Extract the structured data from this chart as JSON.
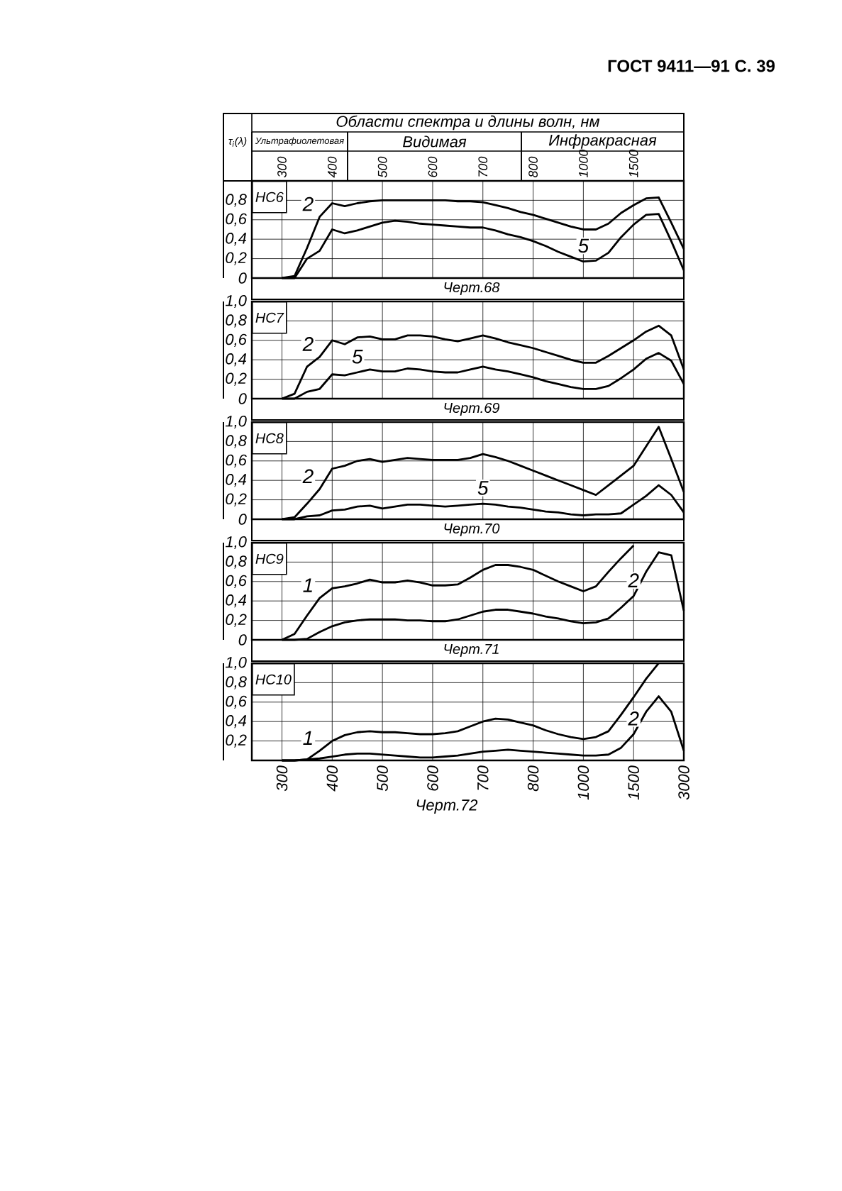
{
  "chart_data": [
    {
      "type": "other",
      "title": "Области спектра и длины волн, нм",
      "annotations": [
        "ГОСТ 9411—91 С. 39",
        "τ$_{i}$(λ)",
        "Ультрафиолетовая",
        "Видимая",
        "Инфракрасная"
      ]
    },
    {
      "type": "line",
      "title": "НС6",
      "categories": [
        "300",
        null,
        null,
        null,
        "400",
        null,
        null,
        null,
        "500",
        null,
        null,
        null,
        "600",
        null,
        null,
        null,
        "700",
        null,
        null,
        null,
        "800",
        null,
        null,
        null,
        "1000",
        null,
        null,
        null,
        "1500",
        null,
        null,
        null,
        null
      ],
      "ylim": [
        0,
        1
      ],
      "yticks": [
        0,
        {
          "value": 0.2,
          "label": "0,2"
        },
        {
          "value": 0.4,
          "label": "0,4"
        },
        {
          "value": 0.6,
          "label": "0,6"
        },
        {
          "value": 0.8,
          "label": "0,8"
        }
      ],
      "grid": true,
      "annotations": [
        "Черт.68"
      ],
      "series": [
        {
          "name": "2",
          "color": "#000000",
          "values": [
            0,
            0.02,
            0.31,
            0.63,
            0.77,
            0.74,
            0.77,
            0.79,
            0.8,
            0.8,
            0.8,
            0.8,
            0.8,
            0.8,
            0.79,
            0.79,
            0.78,
            0.75,
            0.72,
            0.68,
            0.65,
            0.61,
            0.57,
            0.53,
            0.5,
            0.5,
            0.56,
            0.67,
            0.75,
            0.82,
            0.83,
            0.57,
            0.3
          ]
        },
        {
          "name": "5",
          "color": "#000000",
          "values": [
            0,
            0,
            0.2,
            0.28,
            0.5,
            0.46,
            0.49,
            0.53,
            0.57,
            0.59,
            0.58,
            0.56,
            0.55,
            0.54,
            0.53,
            0.52,
            0.52,
            0.49,
            0.45,
            0.42,
            0.38,
            0.33,
            0.27,
            0.22,
            0.17,
            0.18,
            0.26,
            0.42,
            0.55,
            0.65,
            0.66,
            0.38,
            0.08
          ]
        }
      ]
    },
    {
      "type": "line",
      "title": "НС7",
      "categories": [
        "300",
        null,
        null,
        null,
        "400",
        null,
        null,
        null,
        "500",
        null,
        null,
        null,
        "600",
        null,
        null,
        null,
        "700",
        null,
        null,
        null,
        "800",
        null,
        null,
        null,
        "1000",
        null,
        null,
        null,
        "1500",
        null,
        null,
        null,
        "3000"
      ],
      "ylim": [
        0,
        1
      ],
      "yticks": [
        0,
        {
          "value": 0.2,
          "label": "0,2"
        },
        {
          "value": 0.4,
          "label": "0,4"
        },
        {
          "value": 0.6,
          "label": "0,6"
        },
        {
          "value": 0.8,
          "label": "0,8"
        },
        {
          "value": 1.0,
          "label": "1,0"
        }
      ],
      "grid": true,
      "tick_labels": "y",
      "annotations": [
        "Черт.69"
      ],
      "series": [
        {
          "name": "2",
          "color": "#000000",
          "values": [
            0,
            0.05,
            0.33,
            0.43,
            0.6,
            0.56,
            0.63,
            0.64,
            0.61,
            0.61,
            0.65,
            0.65,
            0.64,
            0.61,
            0.59,
            0.62,
            0.65,
            0.62,
            0.58,
            0.55,
            0.52,
            0.48,
            0.44,
            0.4,
            0.37,
            0.37,
            0.44,
            0.52,
            0.6,
            0.69,
            0.75,
            0.65,
            0.3
          ]
        },
        {
          "name": "5",
          "color": "#000000",
          "values": [
            0,
            0,
            0.07,
            0.1,
            0.25,
            0.24,
            0.27,
            0.3,
            0.28,
            0.28,
            0.31,
            0.3,
            0.28,
            0.27,
            0.27,
            0.3,
            0.33,
            0.3,
            0.28,
            0.25,
            0.22,
            0.18,
            0.15,
            0.12,
            0.1,
            0.1,
            0.13,
            0.21,
            0.3,
            0.41,
            0.47,
            0.39,
            0.15
          ]
        }
      ]
    },
    {
      "type": "line",
      "title": "НС8",
      "categories": [
        "300",
        null,
        null,
        null,
        "400",
        null,
        null,
        null,
        "500",
        null,
        null,
        null,
        "600",
        null,
        null,
        null,
        "700",
        null,
        null,
        null,
        "800",
        null,
        null,
        null,
        "1000",
        null,
        null,
        null,
        "1500",
        null,
        null,
        null,
        "3000"
      ],
      "ylim": [
        0,
        1
      ],
      "yticks": [
        0,
        {
          "value": 0.2,
          "label": "0,2"
        },
        {
          "value": 0.4,
          "label": "0,4"
        },
        {
          "value": 0.6,
          "label": "0,6"
        },
        {
          "value": 0.8,
          "label": "0,8"
        },
        {
          "value": 1.0,
          "label": "1,0"
        }
      ],
      "grid": true,
      "tick_labels": "y",
      "annotations": [
        "Черт.70"
      ],
      "series": [
        {
          "name": "2",
          "color": "#000000",
          "values": [
            0,
            0.02,
            0.16,
            0.31,
            0.52,
            0.55,
            0.6,
            0.62,
            0.59,
            0.61,
            0.63,
            0.62,
            0.61,
            0.61,
            0.61,
            0.63,
            0.67,
            0.64,
            0.6,
            0.55,
            0.5,
            0.45,
            0.4,
            0.35,
            0.3,
            0.25,
            0.35,
            0.45,
            0.55,
            0.75,
            0.95,
            0.62,
            0.28
          ]
        },
        {
          "name": "5",
          "color": "#000000",
          "values": [
            0,
            0,
            0.03,
            0.04,
            0.09,
            0.1,
            0.13,
            0.14,
            0.11,
            0.13,
            0.15,
            0.15,
            0.14,
            0.13,
            0.14,
            0.15,
            0.16,
            0.15,
            0.13,
            0.12,
            0.1,
            0.08,
            0.07,
            0.05,
            0.04,
            0.05,
            0.05,
            0.06,
            0.15,
            0.24,
            0.35,
            0.25,
            0.07
          ]
        }
      ]
    },
    {
      "type": "line",
      "title": "НС9",
      "categories": [
        "300",
        null,
        null,
        null,
        "400",
        null,
        null,
        null,
        "500",
        null,
        null,
        null,
        "600",
        null,
        null,
        null,
        "700",
        null,
        null,
        null,
        "800",
        null,
        null,
        null,
        "1000",
        null,
        null,
        null,
        "1500",
        null,
        null,
        null,
        "3000"
      ],
      "ylim": [
        0,
        1
      ],
      "yticks": [
        0,
        {
          "value": 0.2,
          "label": "0,2"
        },
        {
          "value": 0.4,
          "label": "0,4"
        },
        {
          "value": 0.6,
          "label": "0,6"
        },
        {
          "value": 0.8,
          "label": "0,8"
        },
        {
          "value": 1.0,
          "label": "1,0"
        }
      ],
      "grid": true,
      "tick_labels": "y",
      "annotations": [
        "Черт.71"
      ],
      "series": [
        {
          "name": "1",
          "color": "#000000",
          "values": [
            0,
            0.06,
            0.25,
            0.43,
            0.53,
            0.55,
            0.58,
            0.62,
            0.59,
            0.59,
            0.61,
            0.59,
            0.56,
            0.56,
            0.57,
            0.64,
            0.72,
            0.77,
            0.77,
            0.75,
            0.72,
            0.66,
            0.6,
            0.55,
            0.5,
            0.55,
            0.7,
            0.84,
            0.97,
            null,
            null,
            null,
            null
          ]
        },
        {
          "name": "2",
          "color": "#000000",
          "values": [
            0,
            0,
            0.01,
            0.08,
            0.14,
            0.18,
            0.2,
            0.21,
            0.21,
            0.21,
            0.2,
            0.2,
            0.19,
            0.19,
            0.21,
            0.25,
            0.29,
            0.31,
            0.31,
            0.29,
            0.27,
            0.24,
            0.22,
            0.19,
            0.17,
            0.18,
            0.22,
            0.33,
            0.45,
            0.7,
            0.9,
            0.87,
            0.3
          ]
        }
      ]
    },
    {
      "type": "line",
      "title": "НС10",
      "categories": [
        "300",
        null,
        null,
        null,
        "400",
        null,
        null,
        null,
        "500",
        null,
        null,
        null,
        "600",
        null,
        null,
        null,
        "700",
        null,
        null,
        null,
        "800",
        null,
        null,
        null,
        "1000",
        null,
        null,
        null,
        "1500",
        null,
        null,
        null,
        "3000"
      ],
      "ylim": [
        0,
        1
      ],
      "yticks": [
        {
          "value": 0.2,
          "label": "0,2"
        },
        {
          "value": 0.4,
          "label": "0,4"
        },
        {
          "value": 0.6,
          "label": "0,6"
        },
        {
          "value": 0.8,
          "label": "0,8"
        },
        {
          "value": 1.0,
          "label": "1,0"
        }
      ],
      "grid": true,
      "annotations": [
        "Черт.72"
      ],
      "series": [
        {
          "name": "1",
          "color": "#000000",
          "values": [
            0,
            0,
            0.01,
            0.1,
            0.2,
            0.26,
            0.29,
            0.3,
            0.29,
            0.29,
            0.28,
            0.27,
            0.27,
            0.28,
            0.3,
            0.35,
            0.4,
            0.43,
            0.42,
            0.39,
            0.36,
            0.31,
            0.27,
            0.24,
            0.22,
            0.24,
            0.3,
            0.47,
            0.65,
            0.84,
            1.0,
            null,
            null
          ]
        },
        {
          "name": "2",
          "color": "#000000",
          "values": [
            0,
            0,
            0.01,
            0.02,
            0.04,
            0.06,
            0.07,
            0.07,
            0.06,
            0.05,
            0.04,
            0.03,
            0.03,
            0.04,
            0.05,
            0.07,
            0.09,
            0.1,
            0.11,
            0.1,
            0.09,
            0.08,
            0.07,
            0.06,
            0.05,
            0.05,
            0.06,
            0.13,
            0.27,
            0.5,
            0.66,
            0.5,
            0.1
          ]
        }
      ]
    }
  ]
}
